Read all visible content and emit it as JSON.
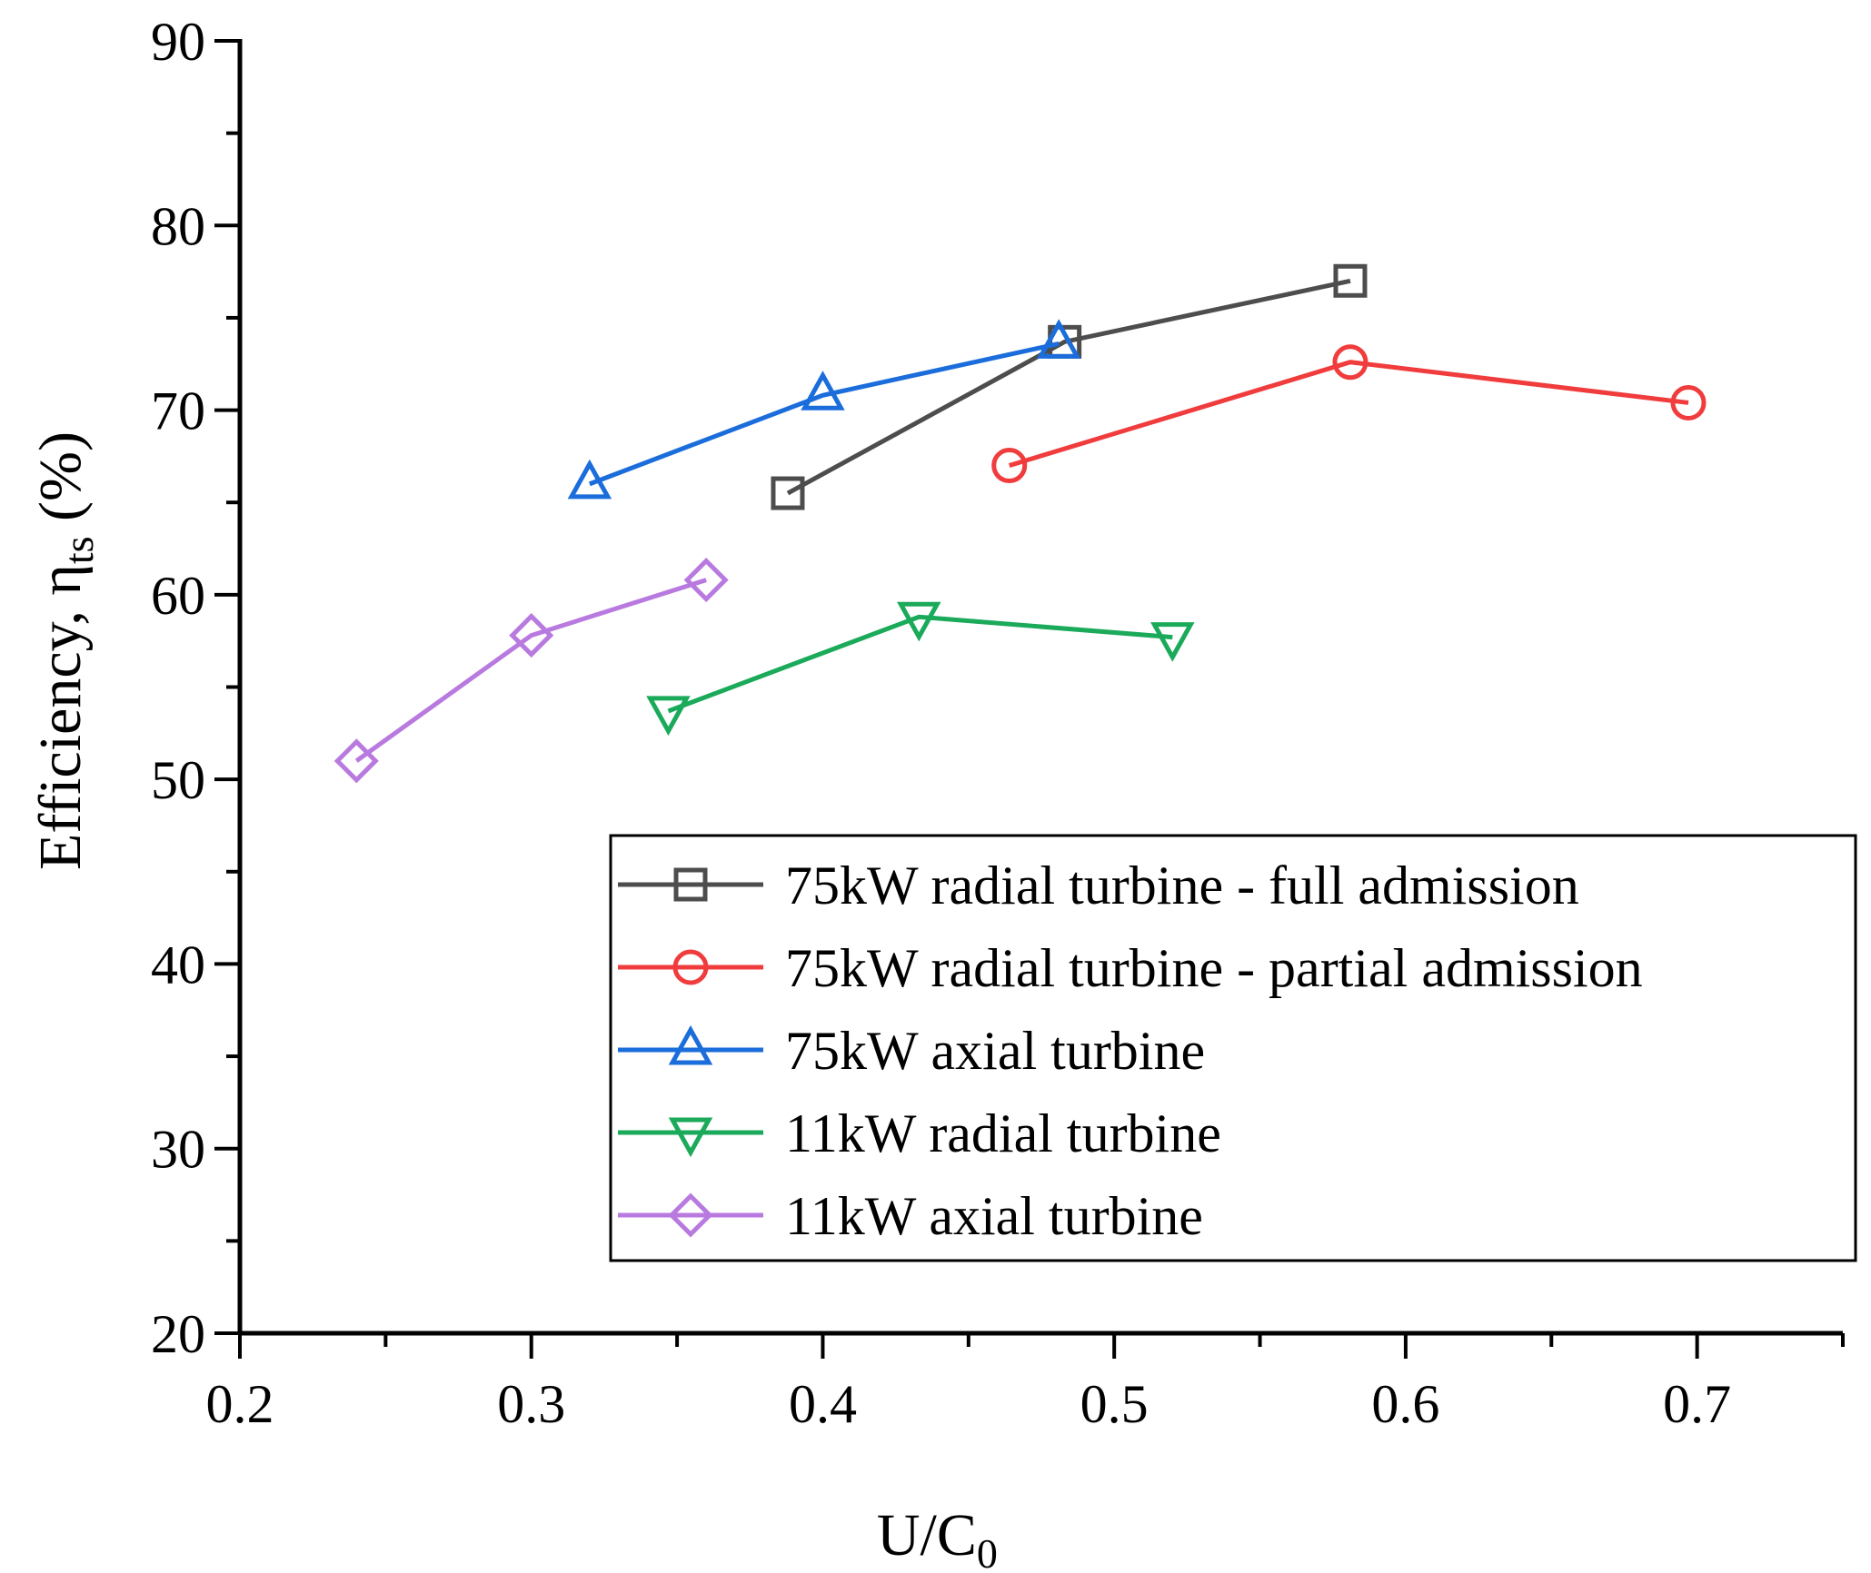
{
  "chart_data": {
    "type": "line",
    "title": "",
    "xlabel_main": "U/C",
    "xlabel_sub": "0",
    "ylabel_main": "Efficiency, η",
    "ylabel_sub": "ts",
    "ylabel_tail": " (%)",
    "xlim": [
      0.2,
      0.75
    ],
    "ylim": [
      20,
      90
    ],
    "xticks": [
      0.2,
      0.3,
      0.4,
      0.5,
      0.6,
      0.7
    ],
    "xtick_labels": [
      "0.2",
      "0.3",
      "0.4",
      "0.5",
      "0.6",
      "0.7"
    ],
    "yticks": [
      20,
      30,
      40,
      50,
      60,
      70,
      80,
      90
    ],
    "ytick_labels": [
      "20",
      "30",
      "40",
      "50",
      "60",
      "70",
      "80",
      "90"
    ],
    "grid": false,
    "legend_position": "bottom-right",
    "series": [
      {
        "name": "75kW radial turbine - full admission",
        "color": "#4d4d4d",
        "marker": "square",
        "x": [
          0.388,
          0.483,
          0.581
        ],
        "y": [
          65.5,
          73.7,
          77.0
        ]
      },
      {
        "name": "75kW radial turbine - partial admission",
        "color": "#f03c3c",
        "marker": "circle",
        "x": [
          0.464,
          0.581,
          0.697
        ],
        "y": [
          67.0,
          72.6,
          70.4
        ]
      },
      {
        "name": "75kW axial turbine",
        "color": "#1a6ddb",
        "marker": "triangle-up",
        "x": [
          0.32,
          0.4,
          0.481
        ],
        "y": [
          66.0,
          70.8,
          73.6
        ]
      },
      {
        "name": "11kW radial turbine",
        "color": "#1aaa5a",
        "marker": "triangle-down",
        "x": [
          0.347,
          0.433,
          0.52
        ],
        "y": [
          53.7,
          58.8,
          57.7
        ]
      },
      {
        "name": "11kW axial turbine",
        "color": "#b97ae0",
        "marker": "diamond",
        "x": [
          0.24,
          0.3,
          0.36
        ],
        "y": [
          51.0,
          57.8,
          60.8
        ]
      }
    ]
  }
}
